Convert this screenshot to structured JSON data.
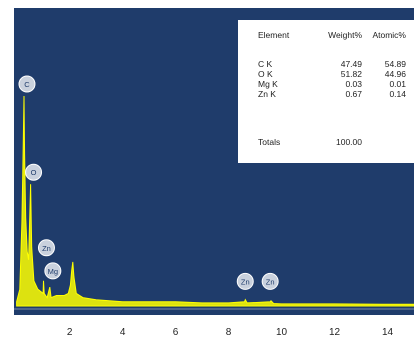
{
  "chart_data": {
    "type": "line",
    "title": "",
    "xlabel": "",
    "ylabel": "",
    "xlim": [
      -0.1,
      15
    ],
    "x_ticks": [
      2,
      4,
      6,
      8,
      10,
      12,
      14
    ],
    "background_color": "#1f3c6b",
    "spectrum_color": "#ffff00",
    "series": [
      {
        "points": [
          [
            0.0,
            2
          ],
          [
            0.12,
            8
          ],
          [
            0.2,
            40
          ],
          [
            0.24,
            70
          ],
          [
            0.277,
            100
          ],
          [
            0.3,
            72
          ],
          [
            0.34,
            42
          ],
          [
            0.4,
            26
          ],
          [
            0.45,
            22
          ],
          [
            0.525,
            58
          ],
          [
            0.57,
            28
          ],
          [
            0.65,
            12
          ],
          [
            0.8,
            8
          ],
          [
            1.0,
            6
          ],
          [
            1.012,
            12
          ],
          [
            1.04,
            6
          ],
          [
            1.15,
            4
          ],
          [
            1.253,
            9
          ],
          [
            1.3,
            4
          ],
          [
            1.5,
            5
          ],
          [
            1.8,
            5
          ],
          [
            1.95,
            6
          ],
          [
            2.03,
            10
          ],
          [
            2.08,
            17
          ],
          [
            2.12,
            21
          ],
          [
            2.16,
            14
          ],
          [
            2.25,
            6
          ],
          [
            2.5,
            4
          ],
          [
            3.0,
            3
          ],
          [
            4.0,
            2
          ],
          [
            5.0,
            2
          ],
          [
            6.0,
            2
          ],
          [
            7.0,
            1.5
          ],
          [
            8.0,
            1.5
          ],
          [
            8.6,
            2
          ],
          [
            8.63,
            3
          ],
          [
            8.7,
            1.5
          ],
          [
            9.57,
            2
          ],
          [
            9.6,
            2.5
          ],
          [
            9.7,
            1.2
          ],
          [
            10.0,
            1
          ],
          [
            12.0,
            1
          ],
          [
            14.0,
            0.8
          ],
          [
            15.0,
            0.8
          ]
        ]
      }
    ],
    "peak_labels": [
      {
        "text": "C",
        "x": 0.277,
        "y": 100
      },
      {
        "text": "O",
        "x": 0.525,
        "y": 58
      },
      {
        "text": "Zn",
        "x": 1.012,
        "y": 22
      },
      {
        "text": "Mg",
        "x": 1.253,
        "y": 11
      },
      {
        "text": "Zn",
        "x": 8.63,
        "y": 6
      },
      {
        "text": "Zn",
        "x": 9.57,
        "y": 6
      }
    ]
  },
  "results_table": {
    "headers": {
      "element": "Element",
      "weight": "Weight%",
      "atomic": "Atomic%"
    },
    "rows": [
      {
        "element": "C K",
        "weight": "47.49",
        "atomic": "54.89"
      },
      {
        "element": "O K",
        "weight": "51.82",
        "atomic": "44.96"
      },
      {
        "element": "Mg K",
        "weight": "0.03",
        "atomic": "0.01"
      },
      {
        "element": "Zn K",
        "weight": "0.67",
        "atomic": "0.14"
      }
    ],
    "totals_label": "Totals",
    "totals_value": "100.00"
  }
}
